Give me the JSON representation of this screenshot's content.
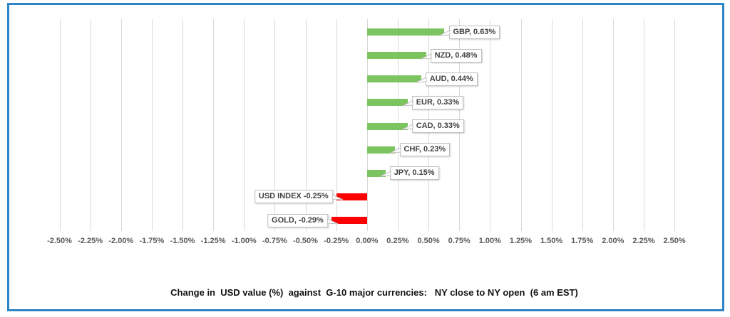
{
  "window": {
    "background_color": "#ffffff",
    "border_color": "#2e85c5"
  },
  "chart_data": {
    "type": "bar",
    "orientation": "horizontal",
    "title": "Change in  USD value (%)  against  G-10 major currencies:   NY close to NY open  (6 am EST)",
    "categories": [
      "GBP",
      "NZD",
      "AUD",
      "EUR",
      "CAD",
      "CHF",
      "JPY",
      "USD INDEX",
      "GOLD"
    ],
    "values": [
      0.63,
      0.48,
      0.44,
      0.33,
      0.33,
      0.23,
      0.15,
      -0.25,
      -0.29
    ],
    "point_labels": [
      "GBP, 0.63%",
      "NZD, 0.48%",
      "AUD, 0.44%",
      "EUR, 0.33%",
      "CAD, 0.33%",
      "CHF, 0.23%",
      "JPY, 0.15%",
      "USD INDEX -0.25%",
      "GOLD, -0.29%"
    ],
    "x_tick_labels": [
      "-2.50%",
      "-2.25%",
      "-2.00%",
      "-1.75%",
      "-1.50%",
      "-1.25%",
      "-1.00%",
      "-0.75%",
      "-0.50%",
      "-0.25%",
      "0.00%",
      "0.25%",
      "0.50%",
      "0.75%",
      "1.00%",
      "1.25%",
      "1.50%",
      "1.75%",
      "2.00%",
      "2.25%",
      "2.50%"
    ],
    "xlim": [
      -2.5,
      2.5
    ],
    "x_tick_step": 0.25,
    "grid": true,
    "legend": "none",
    "colors": {
      "positive_bar": "#7cc45f",
      "negative_bar": "#ff0000",
      "gridline": "#d9d9d9",
      "tick_label": "#595959",
      "data_label_text": "#404040",
      "data_label_border": "#bfbfbf"
    }
  }
}
